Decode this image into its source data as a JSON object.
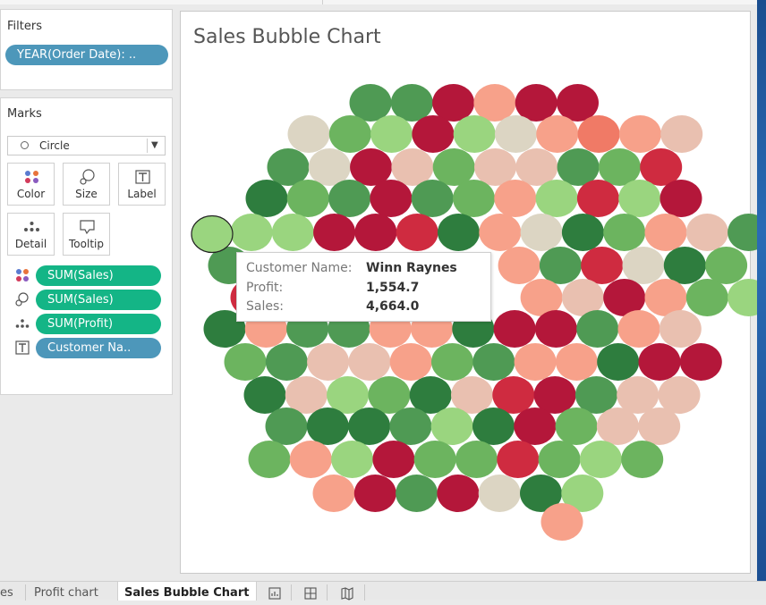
{
  "filters": {
    "title": "Filters",
    "pill": "YEAR(Order Date): .."
  },
  "marks": {
    "title": "Marks",
    "mark_type": "Circle",
    "buttons": [
      {
        "label": "Color",
        "icon": "color-dots-icon"
      },
      {
        "label": "Size",
        "icon": "size-icon"
      },
      {
        "label": "Label",
        "icon": "label-T-icon"
      },
      {
        "label": "Detail",
        "icon": "detail-dots-icon"
      },
      {
        "label": "Tooltip",
        "icon": "tooltip-bubble-icon"
      }
    ],
    "fields": [
      {
        "label": "SUM(Sales)",
        "icon": "color-dots-icon",
        "color": "#14b586"
      },
      {
        "label": "SUM(Sales)",
        "icon": "size-icon",
        "color": "#14b586"
      },
      {
        "label": "SUM(Profit)",
        "icon": "detail-dots-icon",
        "color": "#14b586"
      },
      {
        "label": "Customer Na..",
        "icon": "label-T-icon",
        "color": "#4d97ba"
      }
    ]
  },
  "chart": {
    "title": "Sales Bubble Chart"
  },
  "tooltip": {
    "rows": [
      {
        "key": "Customer Name:",
        "value": "Winn Raynes"
      },
      {
        "key": "Profit:",
        "value": "1,554.7"
      },
      {
        "key": "Sales:",
        "value": "4,664.0"
      }
    ]
  },
  "tabs": {
    "items": [
      "es",
      "Profit chart",
      "Sales Bubble Chart"
    ],
    "active": "Sales Bubble Chart"
  },
  "colors": {
    "darkgreen": "#2e7d3e",
    "green": "#4f9a54",
    "midgreen": "#6cb45f",
    "lightgreen": "#9ad57f",
    "neutral": "#dcd5c3",
    "pink": "#e9c0b0",
    "salmon": "#f7a18a",
    "coral": "#f07a66",
    "red": "#cf2b40",
    "crimson": "#b4173a"
  },
  "chart_data": {
    "type": "scatter",
    "title": "Sales Bubble Chart",
    "encoding": {
      "color": "SUM(Profit)",
      "size": "SUM(Sales)",
      "label": "Customer Name"
    },
    "rows": [
      [
        "green",
        "green",
        "crimson",
        "salmon",
        "crimson",
        "crimson"
      ],
      [
        "neutral",
        "midgreen",
        "lightgreen",
        "crimson",
        "lightgreen",
        "neutral",
        "salmon",
        "coral",
        "salmon",
        "pink"
      ],
      [
        "green",
        "neutral",
        "crimson",
        "pink",
        "midgreen",
        "pink",
        "pink",
        "green",
        "midgreen",
        "red"
      ],
      [
        "darkgreen",
        "midgreen",
        "green",
        "crimson",
        "green",
        "midgreen",
        "salmon",
        "lightgreen",
        "red",
        "lightgreen",
        "crimson"
      ],
      [
        "lightgreen",
        "lightgreen",
        "crimson",
        "crimson",
        "red",
        "darkgreen",
        "salmon",
        "neutral",
        "darkgreen",
        "midgreen",
        "salmon",
        "pink",
        "green"
      ],
      [
        "green",
        "",
        "",
        "",
        "",
        "",
        "",
        "salmon",
        "green",
        "red",
        "neutral",
        "darkgreen",
        "midgreen"
      ],
      [
        "red",
        "",
        "",
        "",
        "",
        "",
        "",
        "salmon",
        "pink",
        "crimson",
        "salmon",
        "midgreen",
        "lightgreen"
      ],
      [
        "darkgreen",
        "salmon",
        "green",
        "green",
        "salmon",
        "salmon",
        "darkgreen",
        "crimson",
        "crimson",
        "green",
        "salmon",
        "pink"
      ],
      [
        "midgreen",
        "green",
        "pink",
        "pink",
        "salmon",
        "midgreen",
        "green",
        "salmon",
        "salmon",
        "darkgreen",
        "crimson",
        "crimson"
      ],
      [
        "darkgreen",
        "pink",
        "lightgreen",
        "midgreen",
        "darkgreen",
        "pink",
        "red",
        "crimson",
        "green",
        "pink",
        "pink"
      ],
      [
        "green",
        "darkgreen",
        "darkgreen",
        "green",
        "lightgreen",
        "darkgreen",
        "crimson",
        "midgreen",
        "pink",
        "pink"
      ],
      [
        "midgreen",
        "salmon",
        "lightgreen",
        "crimson",
        "midgreen",
        "midgreen",
        "red",
        "midgreen",
        "lightgreen",
        "midgreen"
      ],
      [
        "salmon",
        "crimson",
        "green",
        "crimson",
        "neutral",
        "darkgreen",
        "lightgreen"
      ],
      [
        "salmon"
      ]
    ],
    "highlighted": {
      "color": "lightgreen",
      "customer": "Winn Raynes",
      "profit": "1,554.7",
      "sales": "4,664.0"
    }
  }
}
